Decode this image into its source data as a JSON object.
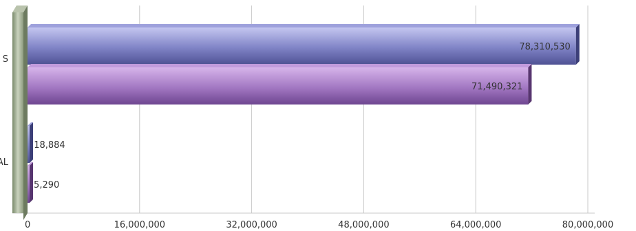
{
  "chart_data": {
    "type": "bar",
    "orientation": "horizontal",
    "style": "3d",
    "categories": [
      "S",
      "AL"
    ],
    "series": [
      {
        "values": [
          78310530,
          18884
        ],
        "value_labels": [
          "78,310,530",
          "18,884"
        ],
        "color": "#6f73b8"
      },
      {
        "values": [
          71490321,
          5290
        ],
        "value_labels": [
          "71,490,321",
          "5,290"
        ],
        "color": "#9a6db5"
      }
    ],
    "xlim": [
      0,
      80000000
    ],
    "x_ticks": [
      0,
      16000000,
      32000000,
      48000000,
      64000000,
      80000000
    ],
    "x_tick_labels": [
      "0",
      "16,000,000",
      "32,000,000",
      "48,000,000",
      "64,000,000",
      "80,000,000"
    ],
    "grid": true,
    "title": "",
    "xlabel": "",
    "ylabel": ""
  }
}
